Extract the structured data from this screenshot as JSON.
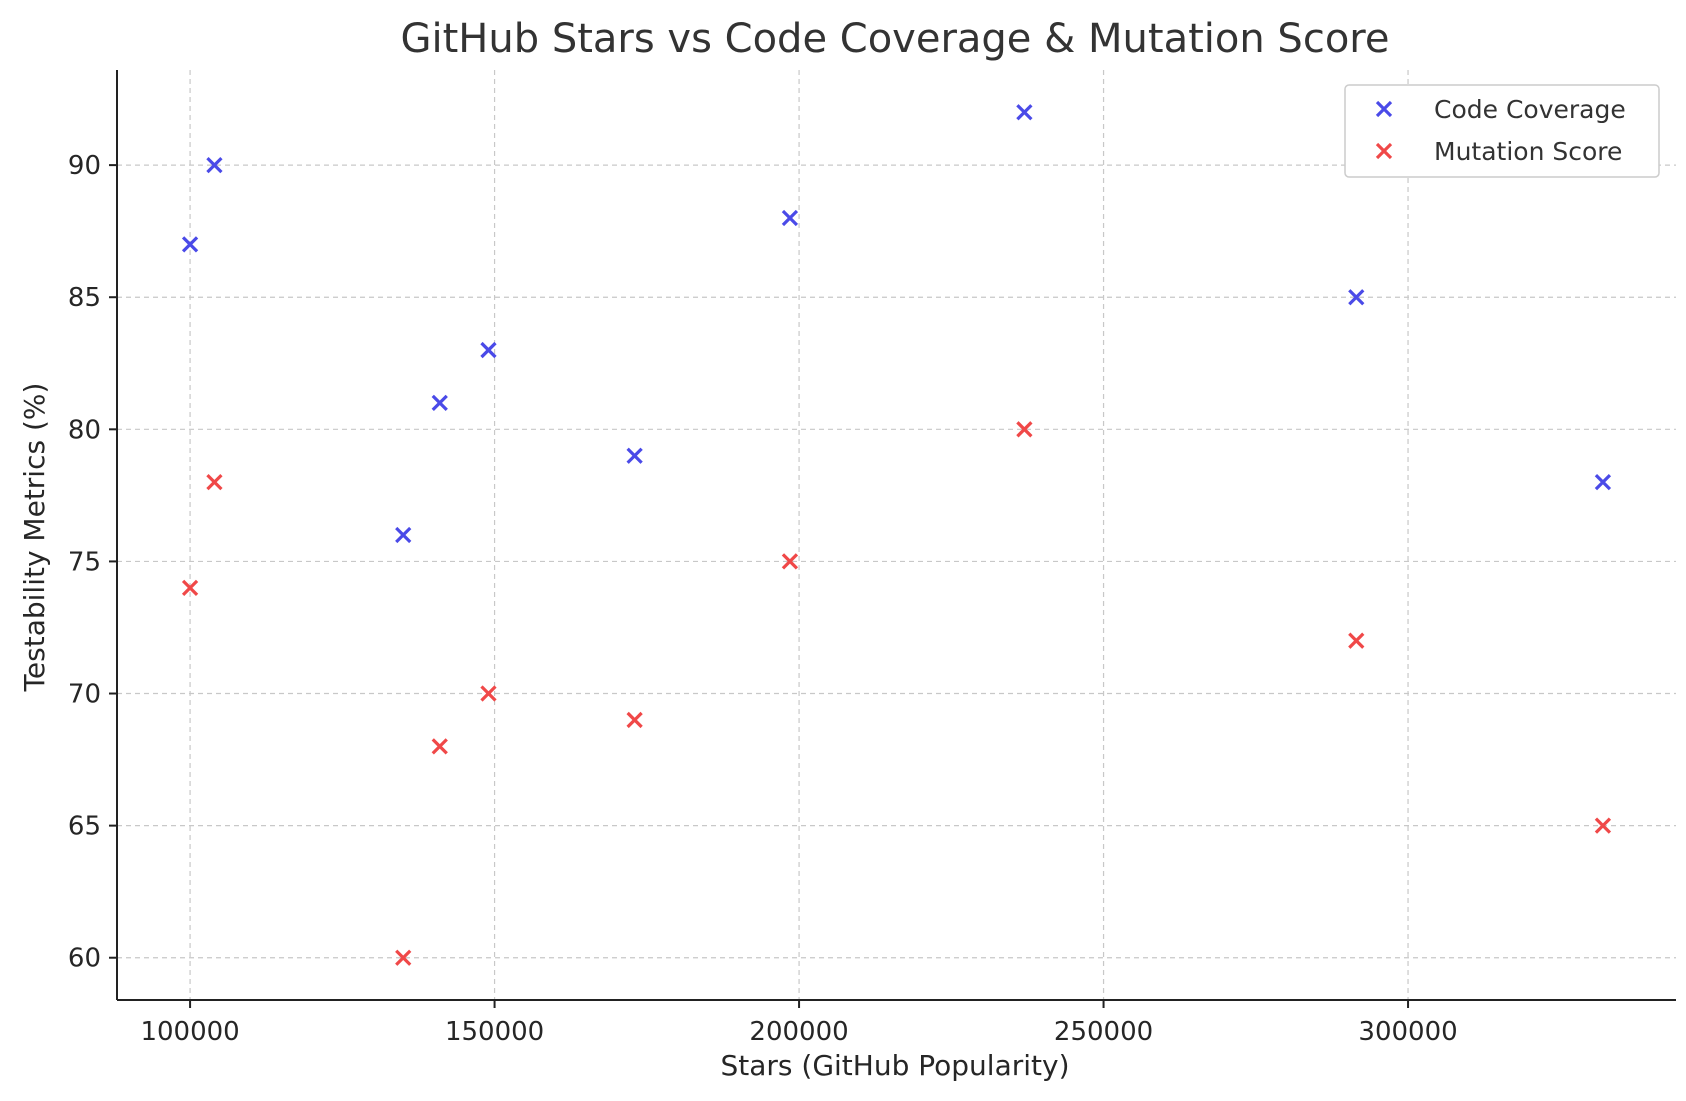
{
  "chart_data": {
    "type": "scatter",
    "title": "GitHub Stars vs Code Coverage & Mutation Score",
    "xlabel": "Stars (GitHub Popularity)",
    "ylabel": "Testability Metrics (%)",
    "xlim": [
      88000,
      344000
    ],
    "ylim": [
      58.4,
      93.6
    ],
    "xticks": [
      100000,
      150000,
      200000,
      250000,
      300000
    ],
    "yticks": [
      60,
      65,
      70,
      75,
      80,
      85,
      90
    ],
    "grid": true,
    "legend_position": "top-right",
    "x": [
      100000,
      104000,
      135000,
      141000,
      149000,
      173000,
      198500,
      237000,
      291500,
      332000
    ],
    "series": [
      {
        "name": "Code Coverage",
        "color": "#4a4ae8",
        "marker": "x",
        "values": [
          87,
          90,
          76,
          81,
          83,
          79,
          88,
          92,
          85,
          78
        ]
      },
      {
        "name": "Mutation Score",
        "color": "#f04848",
        "marker": "x",
        "values": [
          74,
          78,
          60,
          68,
          70,
          69,
          75,
          80,
          72,
          65
        ]
      }
    ]
  }
}
